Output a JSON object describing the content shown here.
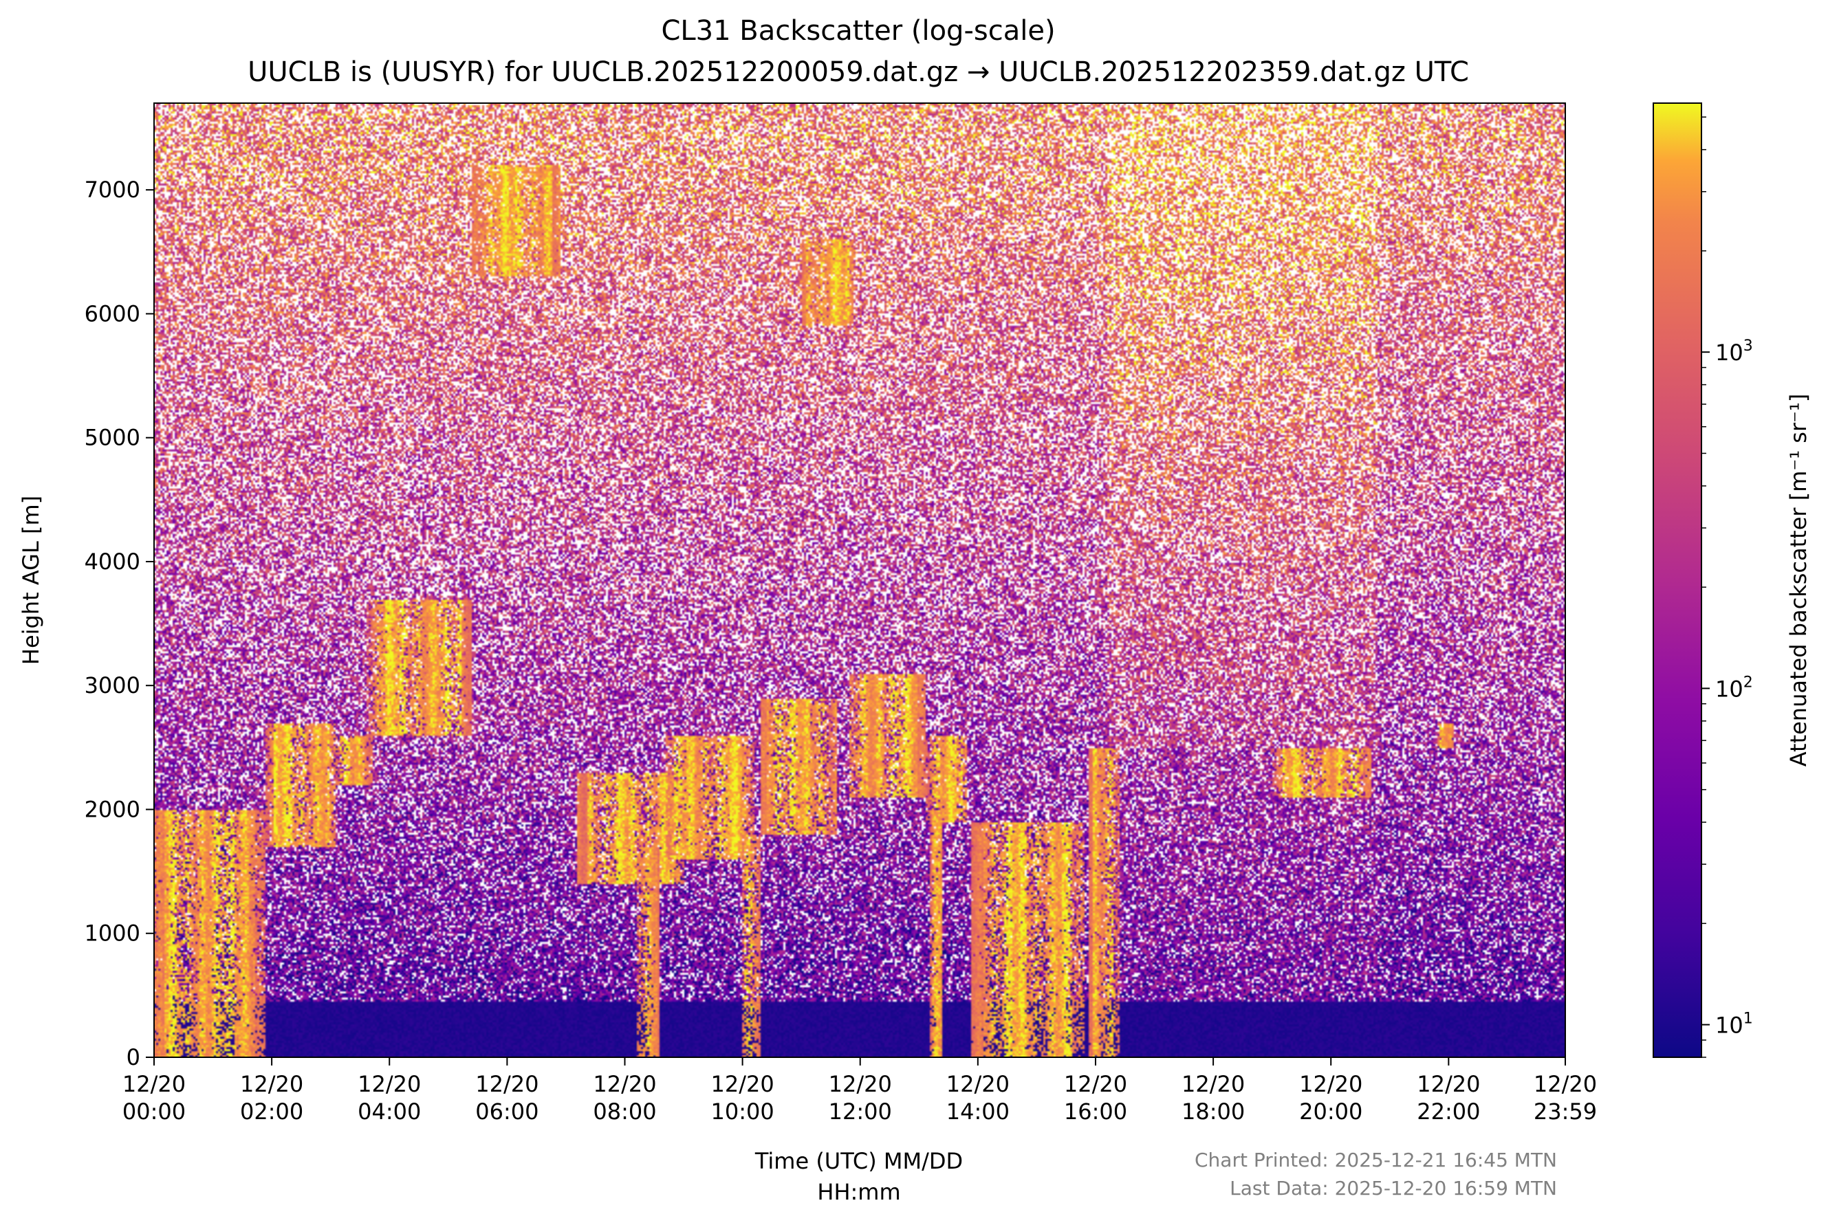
{
  "chart_data": {
    "type": "heatmap",
    "title": "CL31 Backscatter (log-scale)",
    "subtitle": "UUCLB is (UUSYR) for UUCLB.202512200059.dat.gz → UUCLB.202512202359.dat.gz UTC",
    "xlabel_line1": "Time (UTC) MM/DD",
    "xlabel_line2": "HH:mm",
    "ylabel": "Height AGL [m]",
    "colorbar_label": "Attenuated backscatter [m⁻¹ sr⁻¹]",
    "colormap": "plasma",
    "color_scale": "log",
    "color_range": [
      8,
      5500
    ],
    "x_range_hours": [
      0,
      23.983
    ],
    "ylim": [
      0,
      7700
    ],
    "x_ticks": [
      {
        "hour": 0,
        "date": "12/20",
        "time": "00:00"
      },
      {
        "hour": 2,
        "date": "12/20",
        "time": "02:00"
      },
      {
        "hour": 4,
        "date": "12/20",
        "time": "04:00"
      },
      {
        "hour": 6,
        "date": "12/20",
        "time": "06:00"
      },
      {
        "hour": 8,
        "date": "12/20",
        "time": "08:00"
      },
      {
        "hour": 10,
        "date": "12/20",
        "time": "10:00"
      },
      {
        "hour": 12,
        "date": "12/20",
        "time": "12:00"
      },
      {
        "hour": 14,
        "date": "12/20",
        "time": "14:00"
      },
      {
        "hour": 16,
        "date": "12/20",
        "time": "16:00"
      },
      {
        "hour": 18,
        "date": "12/20",
        "time": "18:00"
      },
      {
        "hour": 20,
        "date": "12/20",
        "time": "20:00"
      },
      {
        "hour": 22,
        "date": "12/20",
        "time": "22:00"
      },
      {
        "hour": 23.983,
        "date": "12/20",
        "time": "23:59"
      }
    ],
    "y_ticks": [
      {
        "value": 0,
        "label": "0"
      },
      {
        "value": 1000,
        "label": "1000"
      },
      {
        "value": 2000,
        "label": "2000"
      },
      {
        "value": 3000,
        "label": "3000"
      },
      {
        "value": 4000,
        "label": "4000"
      },
      {
        "value": 5000,
        "label": "5000"
      },
      {
        "value": 6000,
        "label": "6000"
      },
      {
        "value": 7000,
        "label": "7000"
      }
    ],
    "colorbar_ticks": [
      {
        "value": 10,
        "base": "10",
        "exp": "1"
      },
      {
        "value": 100,
        "base": "10",
        "exp": "2"
      },
      {
        "value": 1000,
        "base": "10",
        "exp": "3"
      }
    ],
    "cloud_features": [
      {
        "t0": 0.0,
        "t1": 1.9,
        "bottom": 0,
        "top": 2000
      },
      {
        "t0": 1.9,
        "t1": 3.1,
        "bottom": 1700,
        "top": 2700
      },
      {
        "t0": 3.1,
        "t1": 3.7,
        "bottom": 2200,
        "top": 2600
      },
      {
        "t0": 3.6,
        "t1": 5.4,
        "bottom": 2600,
        "top": 3700
      },
      {
        "t0": 5.4,
        "t1": 6.9,
        "bottom": 6300,
        "top": 7200
      },
      {
        "t0": 7.2,
        "t1": 9.0,
        "bottom": 1400,
        "top": 2300
      },
      {
        "t0": 8.2,
        "t1": 8.6,
        "bottom": 0,
        "top": 1700
      },
      {
        "t0": 8.7,
        "t1": 10.2,
        "bottom": 1600,
        "top": 2600
      },
      {
        "t0": 10.0,
        "t1": 10.3,
        "bottom": 0,
        "top": 1800
      },
      {
        "t0": 10.3,
        "t1": 11.6,
        "bottom": 1800,
        "top": 2900
      },
      {
        "t0": 11.0,
        "t1": 11.9,
        "bottom": 5900,
        "top": 6600
      },
      {
        "t0": 11.8,
        "t1": 13.1,
        "bottom": 2100,
        "top": 3100
      },
      {
        "t0": 13.1,
        "t1": 13.8,
        "bottom": 1900,
        "top": 2600
      },
      {
        "t0": 13.2,
        "t1": 13.4,
        "bottom": 0,
        "top": 2000
      },
      {
        "t0": 13.9,
        "t1": 15.8,
        "bottom": 0,
        "top": 1900
      },
      {
        "t0": 15.9,
        "t1": 16.4,
        "bottom": 0,
        "top": 2500
      },
      {
        "t0": 19.0,
        "t1": 20.7,
        "bottom": 2100,
        "top": 2500
      },
      {
        "t0": 21.8,
        "t1": 22.1,
        "bottom": 2500,
        "top": 2700
      }
    ],
    "background_regions": [
      {
        "t0": 16.2,
        "t1": 20.8,
        "note": "brighter yellow-orange noise aloft"
      }
    ]
  },
  "footer": {
    "printed": "Chart Printed: 2025-12-21 16:45 MTN",
    "last_data": "Last Data: 2025-12-20 16:59 MTN"
  }
}
